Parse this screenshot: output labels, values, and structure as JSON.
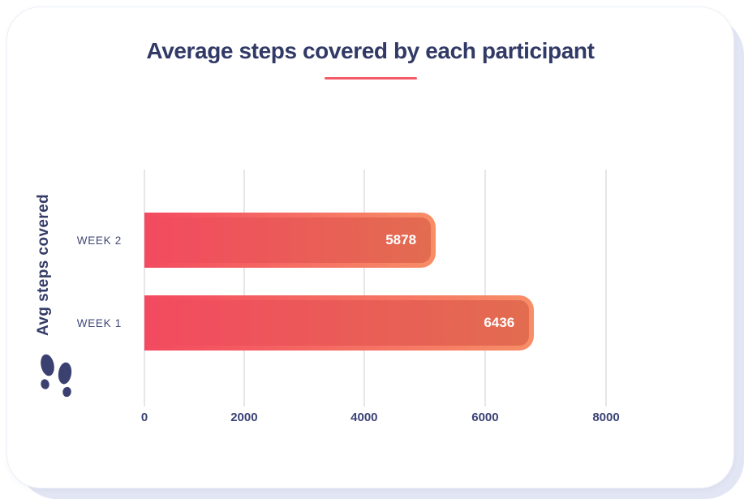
{
  "card": {
    "title": "Average steps covered by each participant"
  },
  "chart_data": {
    "type": "bar",
    "orientation": "horizontal",
    "title": "Average steps covered by each participant",
    "ylabel": "Avg steps covered",
    "xlabel": "",
    "categories": [
      "WEEK 1",
      "WEEK 2"
    ],
    "values": [
      6436,
      5878
    ],
    "xlim": [
      0,
      8000
    ],
    "x_tick_values": [
      0,
      2000,
      4000,
      6000,
      8000
    ],
    "grid": "vertical-only",
    "legend": "none",
    "value_labels_shown": true,
    "bars_top_to_bottom": [
      {
        "label": "WEEK 2",
        "value": 5878,
        "value_label": "5878",
        "render_width_pct": 63.1
      },
      {
        "label": "WEEK 1",
        "value": 6436,
        "value_label": "6436",
        "render_width_pct": 84.4
      }
    ],
    "ticks": [
      {
        "label": "0",
        "pos_pct": 0
      },
      {
        "label": "2000",
        "pos_pct": 21.6
      },
      {
        "label": "4000",
        "pos_pct": 47.6
      },
      {
        "label": "6000",
        "pos_pct": 73.8
      },
      {
        "label": "8000",
        "pos_pct": 100
      }
    ],
    "colors": {
      "bar_gradient_start": "#f34a60",
      "bar_gradient_end_outer": "#f78e66",
      "bar_gradient_end_inner": "#e26c50",
      "title_text": "#313a66",
      "axis_text": "#3b4377",
      "category_text": "#3f4878",
      "underline": "#f45b69",
      "gridline": "#e6e6eb",
      "value_text": "#ffffff",
      "icon": "#3a4170",
      "backdrop": "#e2e5f3",
      "card_background": "#ffffff"
    },
    "icon": "footprints-icon"
  }
}
